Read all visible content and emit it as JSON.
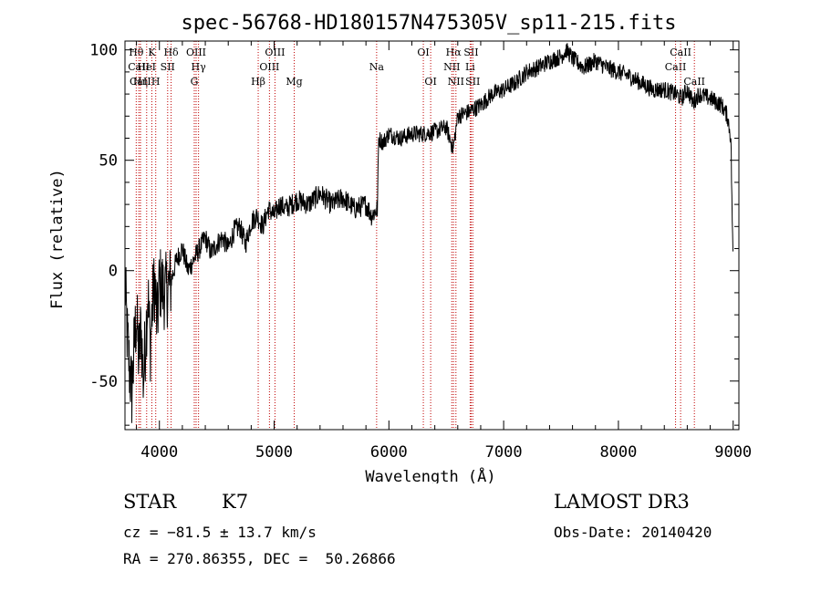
{
  "chart_data": {
    "type": "line",
    "title": "spec-56768-HD180157N475305V_sp11-215.fits",
    "xlabel": "Wavelength (Å)",
    "ylabel": "Flux (relative)",
    "xlim": [
      3700,
      9050
    ],
    "ylim": [
      -72,
      104
    ],
    "xticks": [
      4000,
      5000,
      6000,
      7000,
      8000,
      9000
    ],
    "yticks": [
      -50,
      0,
      50,
      100
    ],
    "series": [
      {
        "name": "spectrum",
        "x": [
          3700,
          3720,
          3740,
          3760,
          3780,
          3800,
          3820,
          3840,
          3860,
          3880,
          3900,
          3920,
          3940,
          3960,
          3980,
          4000,
          4050,
          4100,
          4150,
          4200,
          4250,
          4300,
          4350,
          4400,
          4450,
          4500,
          4550,
          4600,
          4650,
          4700,
          4750,
          4800,
          4850,
          4900,
          4950,
          5000,
          5050,
          5100,
          5150,
          5200,
          5300,
          5400,
          5500,
          5600,
          5700,
          5800,
          5850,
          5900,
          5910,
          5950,
          6000,
          6100,
          6200,
          6300,
          6400,
          6500,
          6560,
          6600,
          6700,
          6800,
          6900,
          7000,
          7100,
          7200,
          7300,
          7400,
          7500,
          7550,
          7600,
          7700,
          7800,
          7900,
          8000,
          8100,
          8200,
          8300,
          8400,
          8500,
          8550,
          8600,
          8650,
          8700,
          8800,
          8900,
          8950,
          8980,
          9000
        ],
        "y": [
          -5,
          -30,
          -45,
          -55,
          -35,
          -20,
          -40,
          -25,
          -50,
          -30,
          -10,
          -35,
          -15,
          -5,
          -25,
          -5,
          -10,
          -5,
          5,
          10,
          0,
          5,
          10,
          15,
          8,
          12,
          15,
          10,
          18,
          20,
          12,
          22,
          25,
          20,
          28,
          25,
          30,
          28,
          30,
          32,
          30,
          35,
          30,
          33,
          28,
          30,
          25,
          28,
          60,
          58,
          62,
          60,
          62,
          62,
          63,
          65,
          55,
          70,
          72,
          75,
          80,
          82,
          85,
          90,
          92,
          95,
          97,
          100,
          96,
          92,
          95,
          92,
          90,
          88,
          85,
          82,
          82,
          80,
          78,
          82,
          76,
          80,
          78,
          75,
          70,
          60,
          0
        ],
        "note": "curve is a smoothed trace; the drawing script adds jagged noise of about ±10"
      }
    ],
    "lines": [
      {
        "label": "Hθ",
        "wave": 3798,
        "row": 0
      },
      {
        "label": "CaII",
        "wave": 3820,
        "row": 1
      },
      {
        "label": "CaII",
        "wave": 3834,
        "row": 2
      },
      {
        "label": "Hη",
        "wave": 3835,
        "row": 2
      },
      {
        "label": "HeI",
        "wave": 3889,
        "row": 1
      },
      {
        "label": "K",
        "wave": 3934,
        "row": 0
      },
      {
        "label": "H",
        "wave": 3968,
        "row": 2
      },
      {
        "label": "Hδ",
        "wave": 4102,
        "row": 0
      },
      {
        "label": "SII",
        "wave": 4072,
        "row": 1
      },
      {
        "label": "OIII",
        "wave": 4320,
        "row": 0
      },
      {
        "label": "Hγ",
        "wave": 4341,
        "row": 1
      },
      {
        "label": "G",
        "wave": 4304,
        "row": 2
      },
      {
        "label": "Hβ",
        "wave": 4861,
        "row": 2
      },
      {
        "label": "OIII",
        "wave": 4959,
        "row": 1
      },
      {
        "label": "OIII",
        "wave": 5007,
        "row": 0
      },
      {
        "label": "Mg",
        "wave": 5175,
        "row": 2
      },
      {
        "label": "Na",
        "wave": 5893,
        "row": 1
      },
      {
        "label": "OI",
        "wave": 6300,
        "row": 0
      },
      {
        "label": "OI",
        "wave": 6364,
        "row": 2
      },
      {
        "label": "Hα",
        "wave": 6563,
        "row": 0
      },
      {
        "label": "NII",
        "wave": 6548,
        "row": 1
      },
      {
        "label": "NII",
        "wave": 6584,
        "row": 2
      },
      {
        "label": "SII",
        "wave": 6717,
        "row": 0
      },
      {
        "label": "Li",
        "wave": 6708,
        "row": 1
      },
      {
        "label": "SII",
        "wave": 6731,
        "row": 2
      },
      {
        "label": "CaII",
        "wave": 8498,
        "row": 1
      },
      {
        "label": "CaII",
        "wave": 8542,
        "row": 0
      },
      {
        "label": "CaII",
        "wave": 8662,
        "row": 2
      }
    ]
  },
  "info": {
    "class_label": "STAR",
    "subclass": "K7",
    "survey": "LAMOST DR3",
    "cz": "cz = −81.5 ± 13.7 km/s",
    "obs_date": "Obs-Date: 20140420",
    "coords": "RA = 270.86355, DEC =  50.26866"
  }
}
